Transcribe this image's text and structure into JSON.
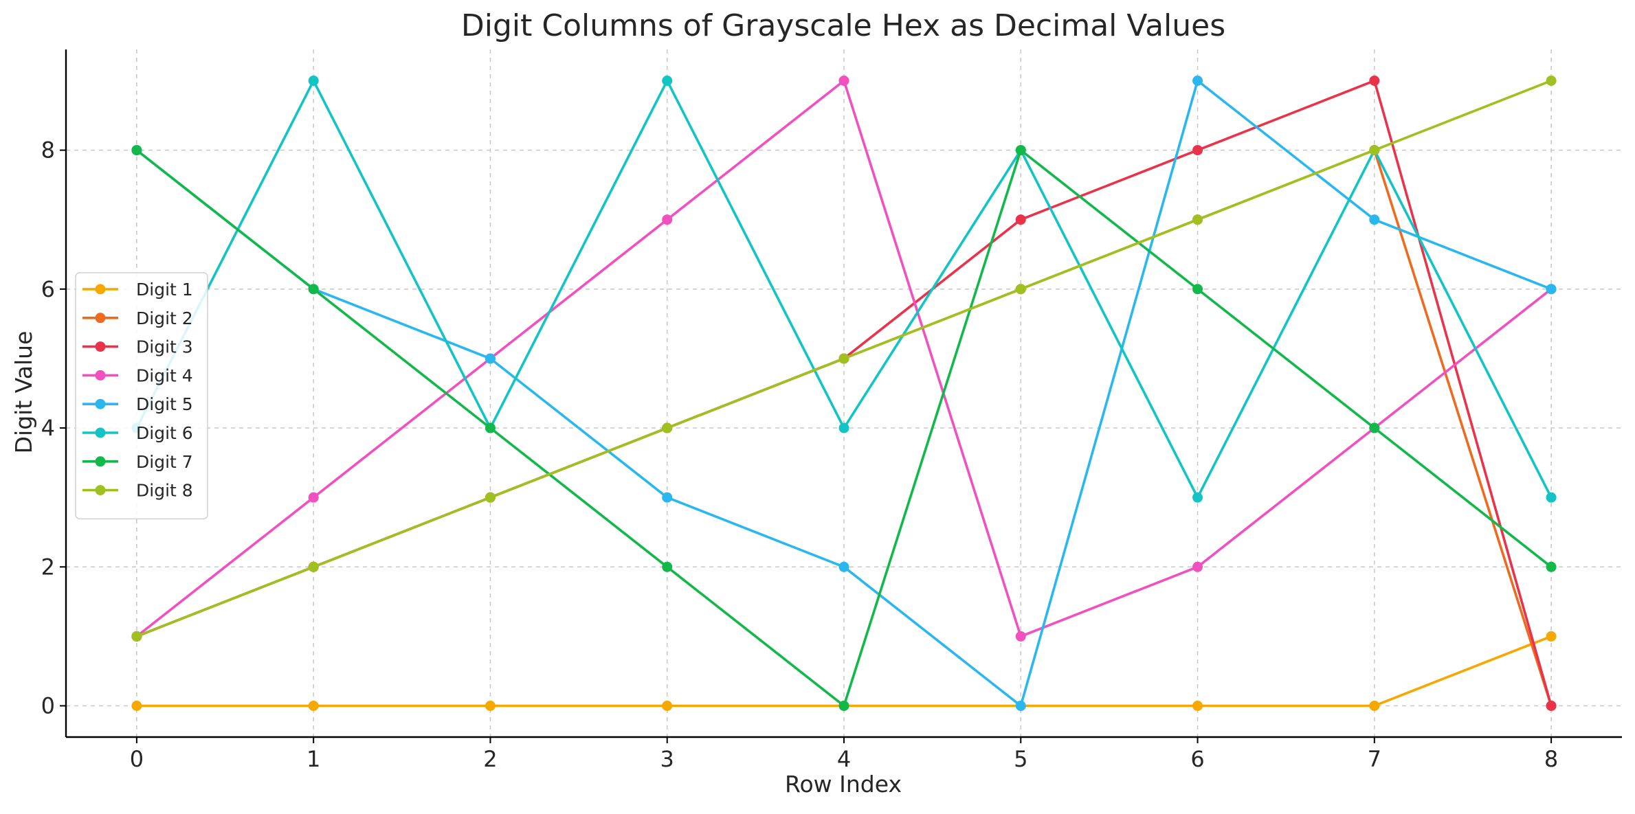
{
  "chart_data": {
    "type": "line",
    "title": "Digit Columns of Grayscale Hex as Decimal Values",
    "xlabel": "Row Index",
    "ylabel": "Digit Value",
    "x": [
      0,
      1,
      2,
      3,
      4,
      5,
      6,
      7,
      8
    ],
    "xlim": [
      -0.4,
      8.4
    ],
    "ylim": [
      -0.45,
      9.45
    ],
    "xticks": [
      "0",
      "1",
      "2",
      "3",
      "4",
      "5",
      "6",
      "7",
      "8"
    ],
    "yticks": [
      "0",
      "2",
      "4",
      "6",
      "8"
    ],
    "grid": true,
    "legend_position": "center-left",
    "series": [
      {
        "name": "Digit 1",
        "color": "#f5a800",
        "values": [
          0,
          0,
          0,
          0,
          0,
          0,
          0,
          0,
          1
        ]
      },
      {
        "name": "Digit 2",
        "color": "#ee6a1f",
        "values": [
          1,
          2,
          3,
          4,
          5,
          6,
          7,
          8,
          0
        ]
      },
      {
        "name": "Digit 3",
        "color": "#e8334a",
        "values": [
          1,
          2,
          3,
          4,
          5,
          7,
          8,
          9,
          0
        ]
      },
      {
        "name": "Digit 4",
        "color": "#f050c0",
        "values": [
          1,
          3,
          5,
          7,
          9,
          1,
          2,
          4,
          6
        ]
      },
      {
        "name": "Digit 5",
        "color": "#2ab7f0",
        "values": [
          8,
          6,
          5,
          3,
          2,
          0,
          9,
          7,
          6
        ]
      },
      {
        "name": "Digit 6",
        "color": "#12c4c4",
        "values": [
          4,
          9,
          4,
          9,
          4,
          8,
          3,
          8,
          3
        ]
      },
      {
        "name": "Digit 7",
        "color": "#12b84a",
        "values": [
          8,
          6,
          4,
          2,
          0,
          8,
          6,
          4,
          2
        ]
      },
      {
        "name": "Digit 8",
        "color": "#a0c020",
        "values": [
          1,
          2,
          3,
          4,
          5,
          6,
          7,
          8,
          9
        ]
      }
    ]
  }
}
